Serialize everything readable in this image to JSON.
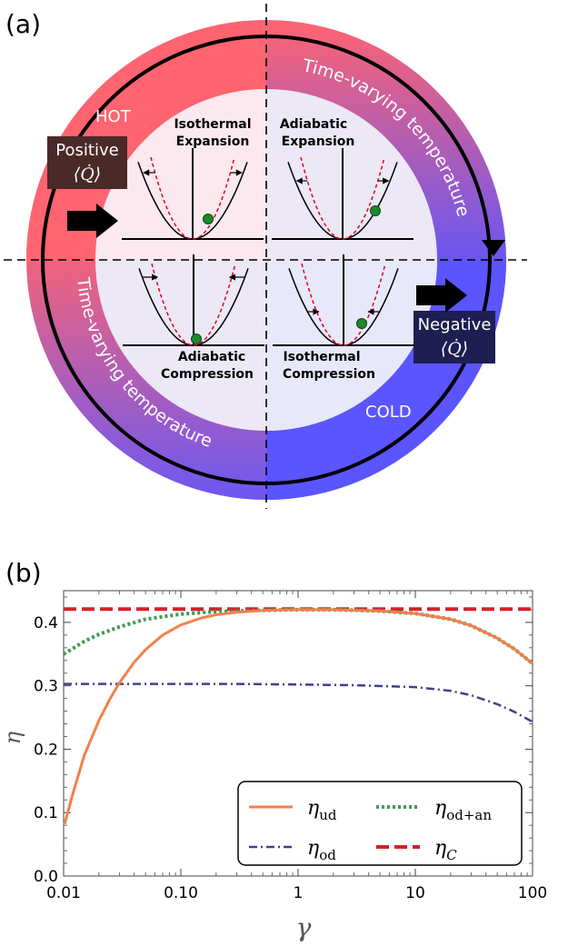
{
  "panel_a": {
    "label": "(a)",
    "hot_label": "HOT",
    "cold_label": "COLD",
    "ring_top_text": "Time-varying temperature",
    "ring_bottom_text": "Time-varying temperature",
    "positive_label": "Positive",
    "negative_label": "Negative",
    "heat_symbol": "⟨Q̇⟩",
    "stroke_labels": {
      "isothermal_expansion": [
        "Isothermal",
        "Expansion"
      ],
      "adiabatic_expansion": [
        "Adiabatic",
        "Expansion"
      ],
      "adiabatic_compression": [
        "Adiabatic",
        "Compression"
      ],
      "isothermal_compression": [
        "Isothermal",
        "Compression"
      ]
    },
    "colors": {
      "hot": "#ff6470",
      "cold": "#5a55ff",
      "particle": "#1a8a2a",
      "dashed_curve": "#e0001a"
    }
  },
  "panel_b": {
    "label": "(b)"
  },
  "chart_data": {
    "type": "line",
    "xlabel": "γ",
    "ylabel": "η",
    "x_scale": "log",
    "xlim": [
      0.01,
      100
    ],
    "ylim": [
      0,
      0.45
    ],
    "xticks": [
      0.01,
      0.1,
      1,
      10,
      100
    ],
    "xtick_labels": [
      "0.01",
      "0.10",
      "1",
      "10",
      "100"
    ],
    "yticks": [
      0,
      0.1,
      0.2,
      0.3,
      0.4
    ],
    "ytick_labels": [
      "0.0",
      "0.1",
      "0.2",
      "0.3",
      "0.4"
    ],
    "legend_position": "bottom-right",
    "series": [
      {
        "name": "η_ud",
        "legend_main": "η",
        "legend_sub": "ud",
        "color": "#f4804a",
        "style": "solid",
        "x": [
          0.0102,
          0.012,
          0.015,
          0.02,
          0.025,
          0.03,
          0.04,
          0.05,
          0.07,
          0.1,
          0.15,
          0.2,
          0.3,
          0.5,
          1,
          2,
          3,
          5,
          10,
          20,
          30,
          50,
          70,
          100
        ],
        "y": [
          0.082,
          0.13,
          0.19,
          0.245,
          0.28,
          0.305,
          0.337,
          0.357,
          0.38,
          0.396,
          0.407,
          0.412,
          0.416,
          0.419,
          0.42,
          0.42,
          0.419,
          0.418,
          0.414,
          0.405,
          0.395,
          0.375,
          0.358,
          0.335
        ]
      },
      {
        "name": "η_od+an",
        "legend_main": "η",
        "legend_sub": "od+an",
        "color": "#3f9a52",
        "style": "dotted",
        "x": [
          0.01,
          0.015,
          0.02,
          0.03,
          0.05,
          0.1,
          0.2,
          0.5,
          1,
          2,
          5,
          10,
          20,
          30,
          50,
          70,
          100
        ],
        "y": [
          0.35,
          0.37,
          0.381,
          0.393,
          0.405,
          0.413,
          0.417,
          0.419,
          0.42,
          0.42,
          0.418,
          0.414,
          0.405,
          0.395,
          0.375,
          0.358,
          0.335
        ]
      },
      {
        "name": "η_od",
        "legend_main": "η",
        "legend_sub": "od",
        "color": "#40408f",
        "style": "dashdot",
        "x": [
          0.01,
          0.03,
          0.1,
          0.3,
          1,
          3,
          10,
          20,
          30,
          50,
          70,
          100
        ],
        "y": [
          0.303,
          0.303,
          0.303,
          0.303,
          0.302,
          0.301,
          0.298,
          0.292,
          0.285,
          0.271,
          0.259,
          0.243
        ]
      },
      {
        "name": "η_C",
        "legend_main": "η",
        "legend_sub": "C",
        "color": "#d4202a",
        "style": "dashed",
        "x": [
          0.01,
          100
        ],
        "y": [
          0.421,
          0.421
        ]
      }
    ]
  }
}
